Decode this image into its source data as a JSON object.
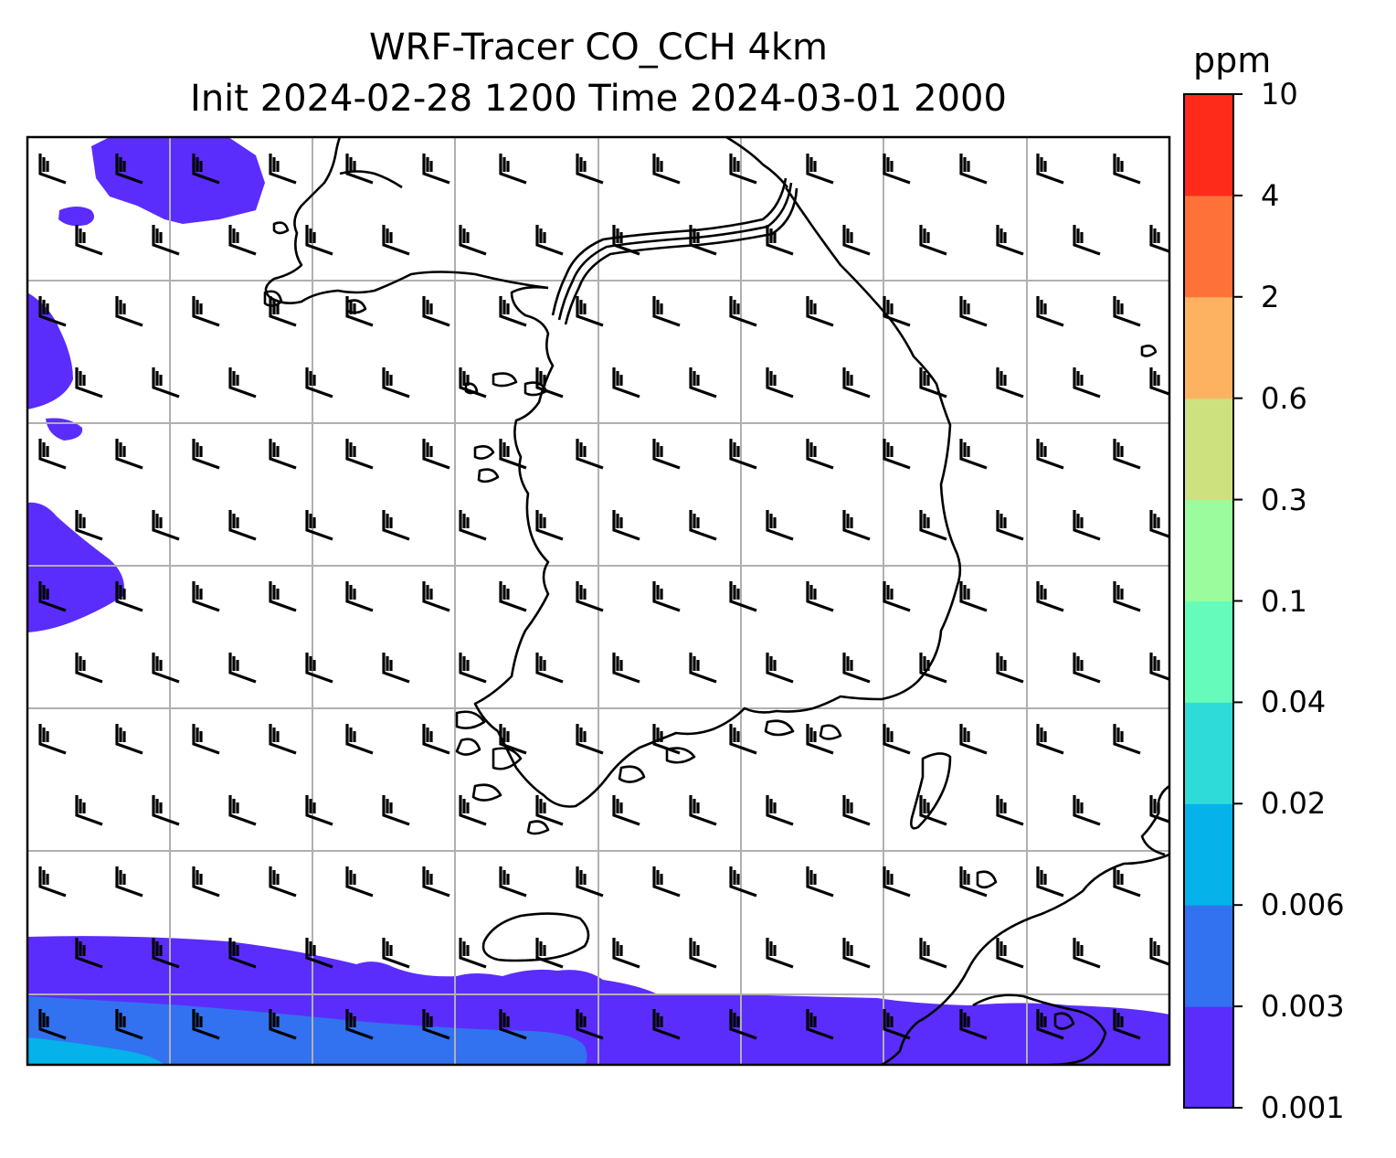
{
  "title": {
    "line1": "WRF-Tracer CO_CCH 4km",
    "line2": "Init 2024-02-28 1200 Time 2024-03-01 2000"
  },
  "colorbar": {
    "unit": "ppm",
    "levels": [
      "0.001",
      "0.003",
      "0.006",
      "0.02",
      "0.04",
      "0.1",
      "0.3",
      "0.6",
      "2",
      "4",
      "10"
    ],
    "colors": [
      "#5b2dfc",
      "#3272f0",
      "#05b2ea",
      "#2fdbd8",
      "#65fbbb",
      "#9afc9d",
      "#cde27f",
      "#fdb262",
      "#fe723a",
      "#fe2a1a"
    ]
  },
  "map": {
    "field": "CO_CCH tracer concentration",
    "wind_barbs": true,
    "gridlines": true
  }
}
